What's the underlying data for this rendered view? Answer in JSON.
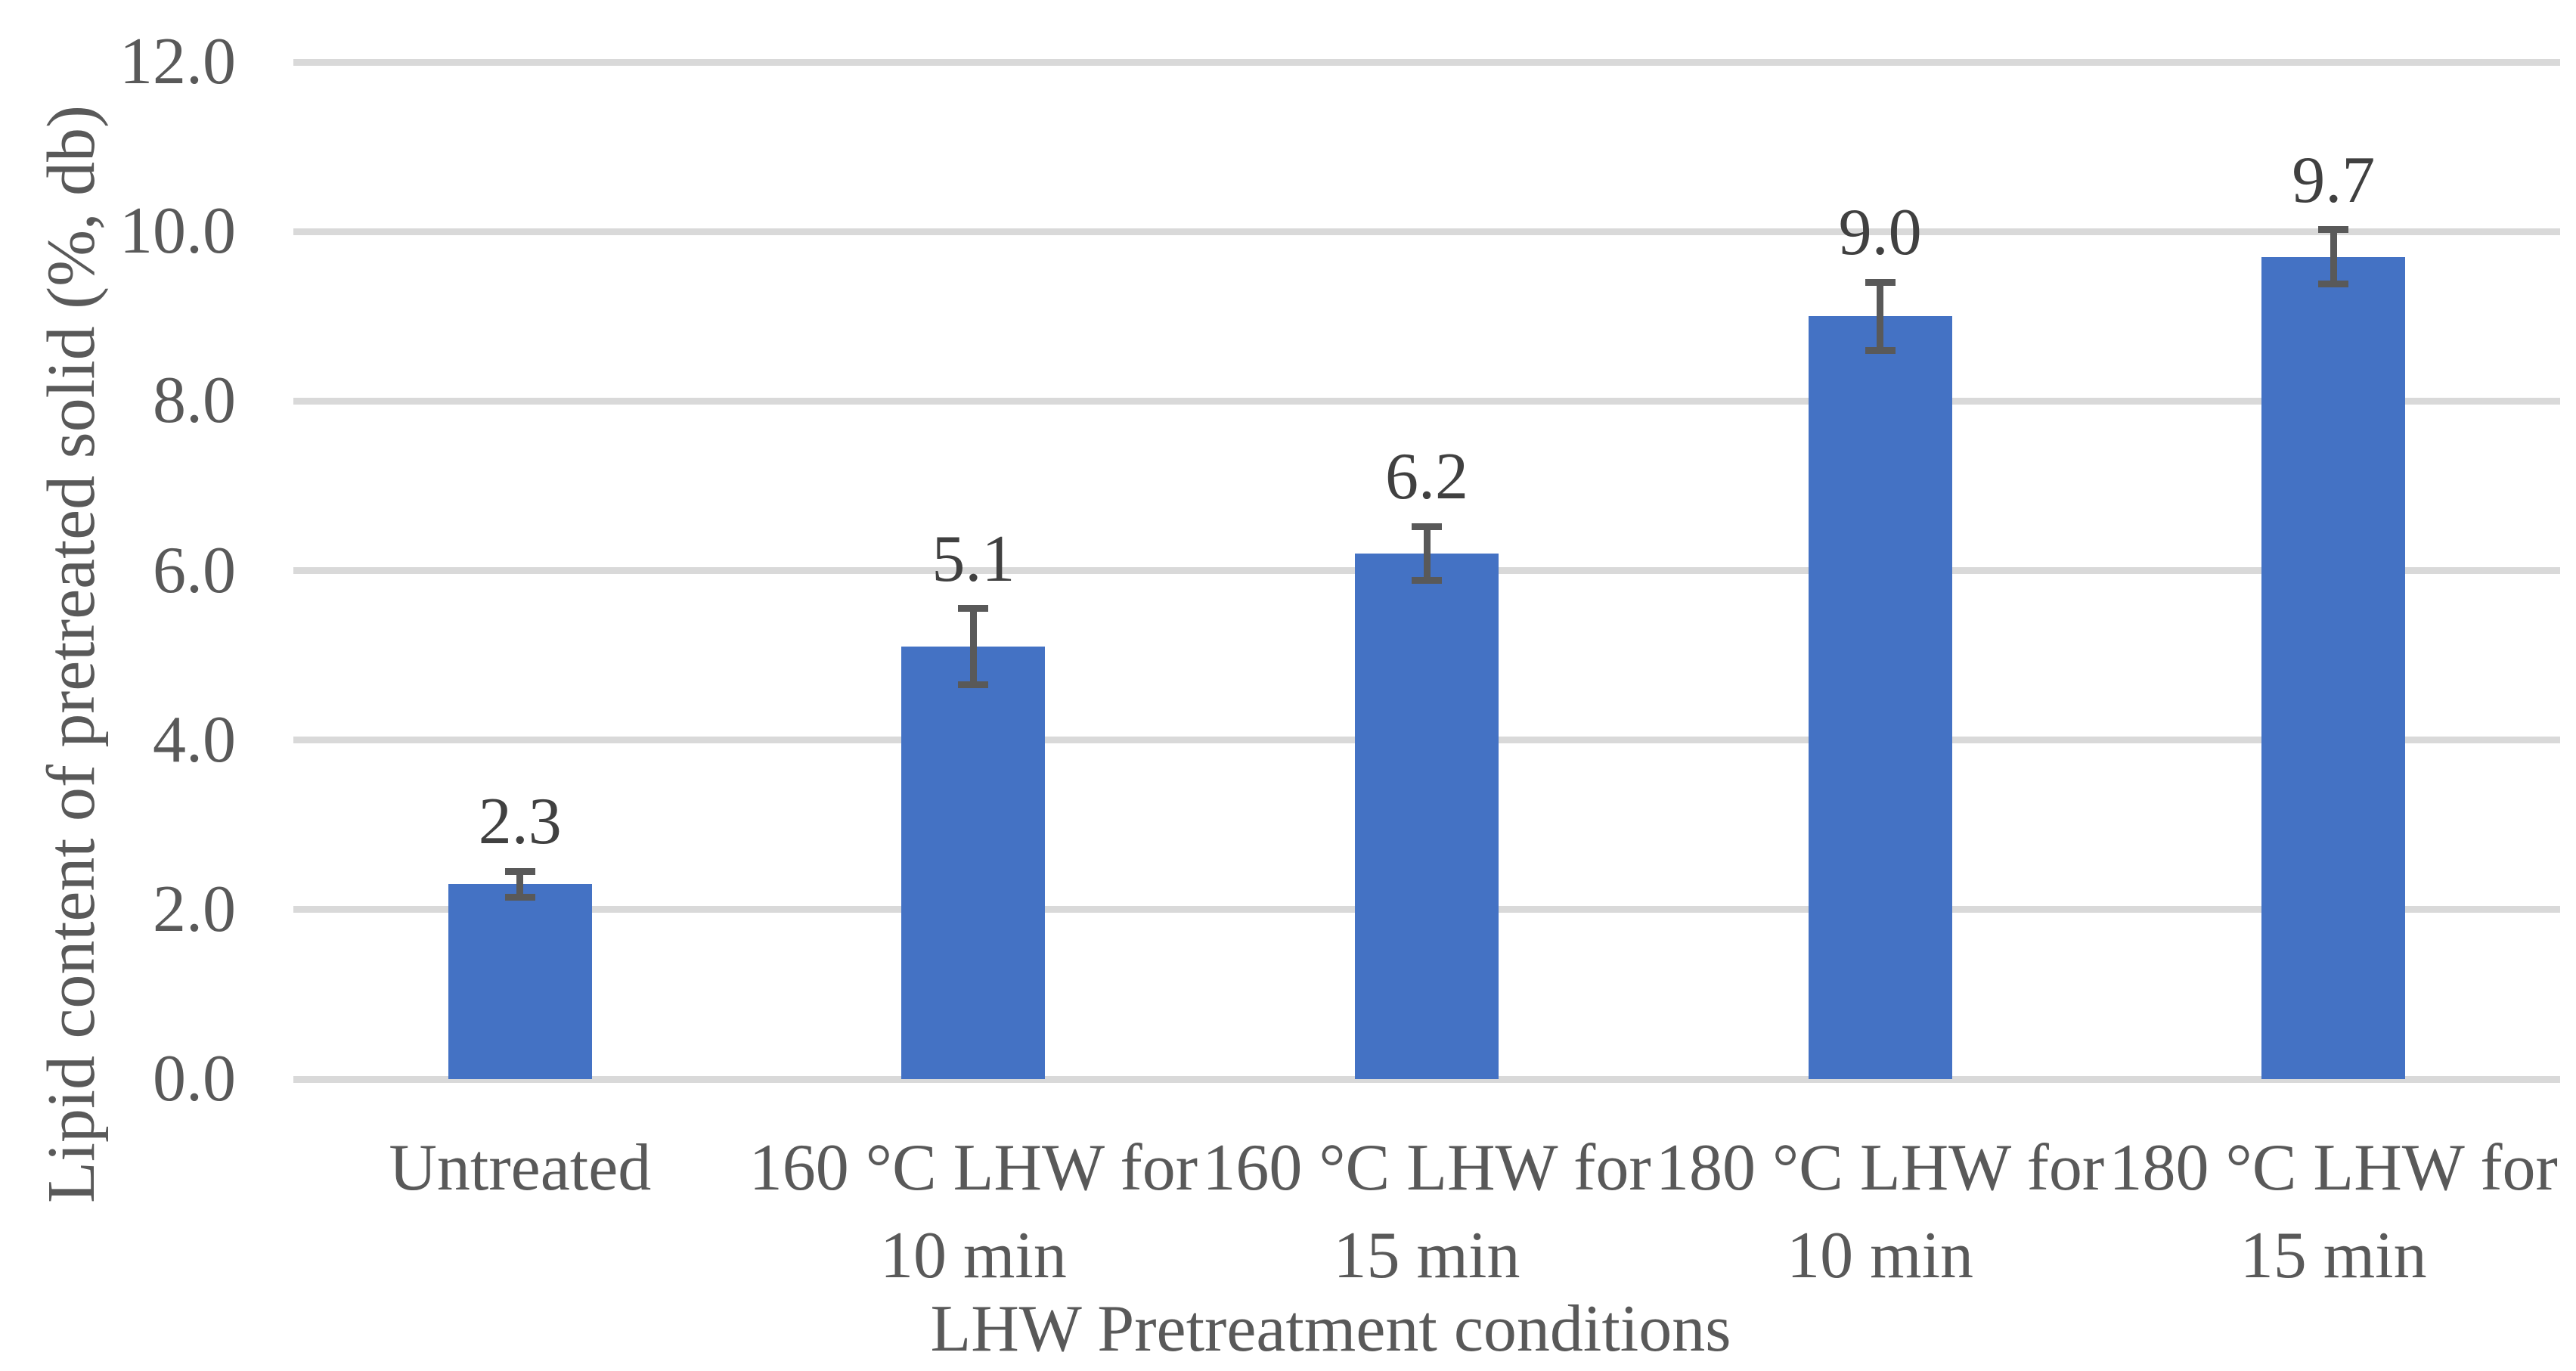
{
  "chart_data": {
    "type": "bar",
    "title": "",
    "xlabel": "LHW Pretreatment conditions",
    "ylabel": "Lipid content of pretreated solid (%, db)",
    "categories": [
      "Untreated",
      "160 °C LHW for 10 min",
      "160 °C LHW for 15 min",
      "180 °C LHW for 10 min",
      "180 °C LHW for 15 min"
    ],
    "category_lines": [
      [
        "Untreated"
      ],
      [
        "160 °C LHW for",
        "10 min"
      ],
      [
        "160 °C LHW for",
        "15 min"
      ],
      [
        "180 °C LHW for",
        "10 min"
      ],
      [
        "180 °C LHW for",
        "15 min"
      ]
    ],
    "values": [
      2.3,
      5.1,
      6.2,
      9.0,
      9.7
    ],
    "value_labels": [
      "2.3",
      "5.1",
      "6.2",
      "9.0",
      "9.7"
    ],
    "error_bars": [
      0.15,
      0.45,
      0.32,
      0.4,
      0.32
    ],
    "ylim": [
      0,
      12
    ],
    "ytick_values": [
      0,
      2,
      4,
      6,
      8,
      10,
      12
    ],
    "ytick_labels": [
      "0.0",
      "2.0",
      "4.0",
      "6.0",
      "8.0",
      "10.0",
      "12.0"
    ],
    "grid": true,
    "legend": "none",
    "colors": {
      "bar": "#4472C4",
      "gridline": "#D9D9D9",
      "axis_line": "#D9D9D9",
      "text": "#595959",
      "value_label": "#404040",
      "error_bar": "#595959"
    }
  }
}
